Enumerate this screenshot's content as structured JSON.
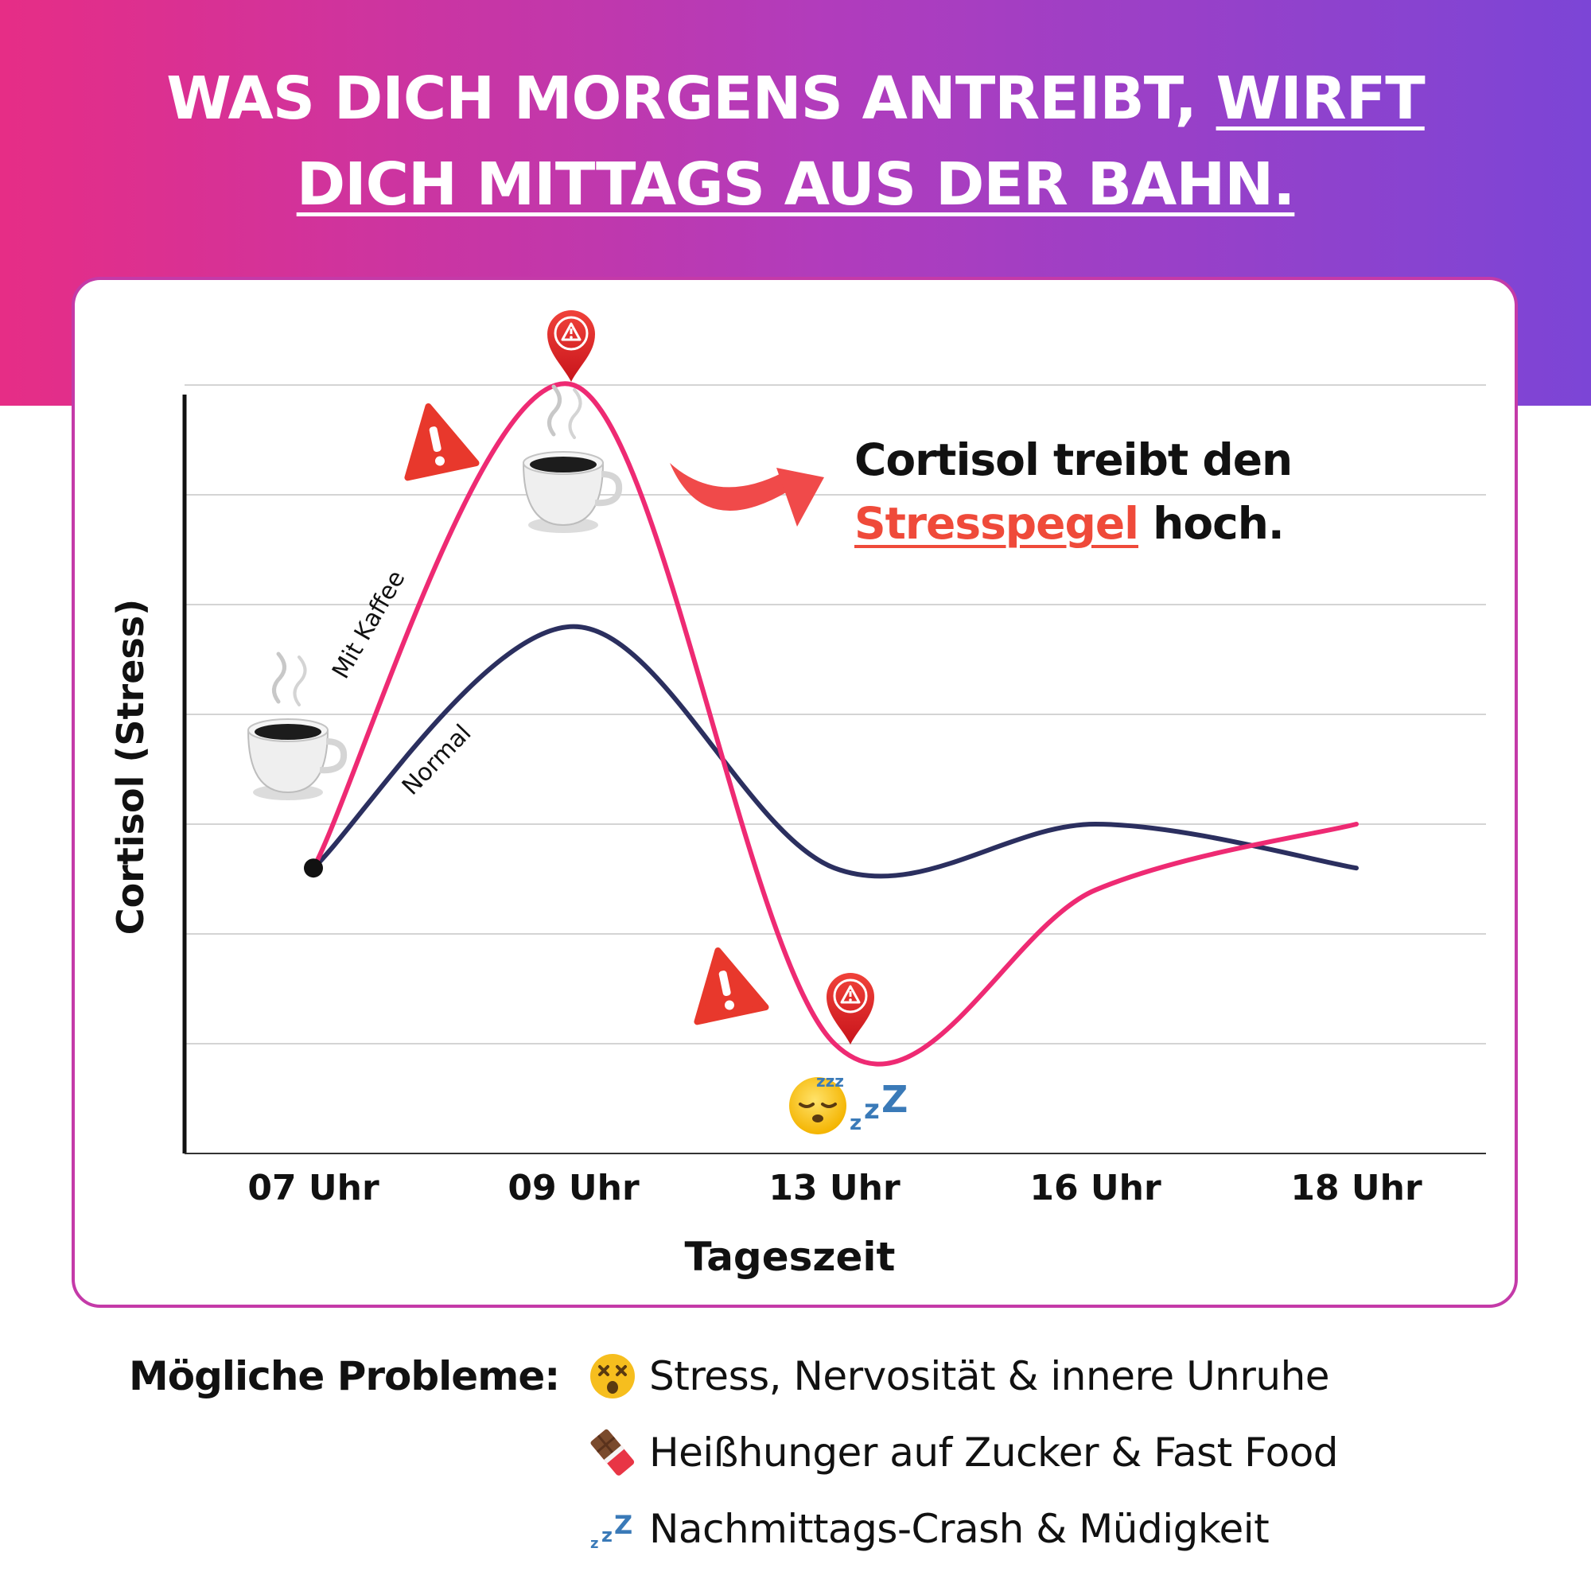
{
  "header": {
    "line1_plain": "WAS DICH MORGENS ANTREIBT,",
    "line1_underlined": "WIRFT",
    "line2_underlined": "DICH MITTAGS AUS DER BAHN."
  },
  "callout": {
    "line1": "Cortisol treibt den",
    "highlight": "Stresspegel",
    "line2_rest": "hoch."
  },
  "chart_data": {
    "type": "line",
    "xlabel": "Tageszeit",
    "ylabel": "Cortisol (Stress)",
    "categories": [
      "07 Uhr",
      "09 Uhr",
      "13 Uhr",
      "16 Uhr",
      "18 Uhr"
    ],
    "ylim": [
      0,
      7
    ],
    "grid": true,
    "series": [
      {
        "name": "Mit Kaffee",
        "color": "#ee2a73",
        "values": [
          2.6,
          7.0,
          1.0,
          2.4,
          3.0
        ]
      },
      {
        "name": "Normal",
        "color": "#2b2f5f",
        "values": [
          2.6,
          4.8,
          2.6,
          3.0,
          2.6
        ]
      }
    ],
    "annotations": [
      "coffee-cup-icon",
      "warning-pin-icon",
      "warning-triangle-icon",
      "sleeping-face-icon",
      "curved-arrow-icon"
    ]
  },
  "problems": {
    "title": "Mögliche Probleme:",
    "items": [
      {
        "icon": "dizzy-face-icon",
        "text": "Stress, Nervosität & innere Unruhe"
      },
      {
        "icon": "chocolate-bar-icon",
        "text": "Heißhunger auf Zucker & Fast Food"
      },
      {
        "icon": "zzz-icon",
        "text": "Nachmittags-Crash & Müdigkeit"
      }
    ]
  },
  "colors": {
    "gradient_start": "#e62d86",
    "gradient_end": "#7c45d6",
    "accent_red": "#ef4a3a",
    "pin_red": "#e0201e"
  }
}
